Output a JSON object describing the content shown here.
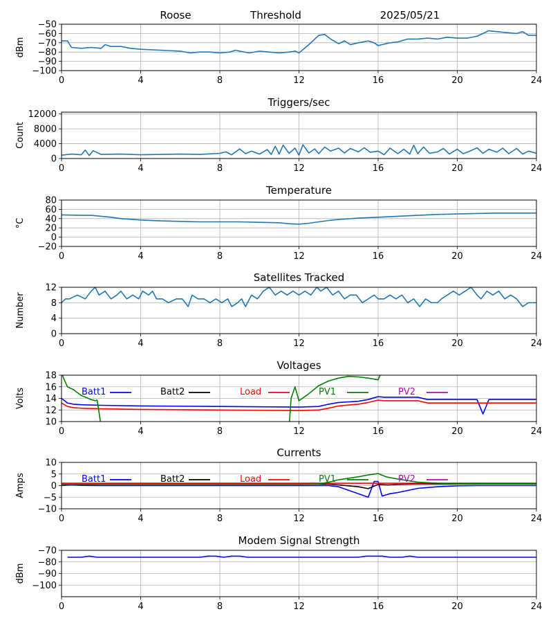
{
  "header": {
    "station": "Roose",
    "subtitle": "Threshold",
    "date": "2025/05/21"
  },
  "x_ticks": [
    0,
    4,
    8,
    12,
    16,
    20,
    24
  ],
  "colors": {
    "series": "#1f77b4",
    "grid": "#b0b0b0",
    "Batt1": "#0000ff",
    "Batt2": "#000000",
    "Load": "#ff0000",
    "PV1": "#008000",
    "PV2": "#c000c0"
  },
  "chart_data": [
    {
      "id": "threshold",
      "type": "line",
      "title": "",
      "ylabel": "dBm",
      "xlim": [
        0,
        24
      ],
      "ylim": [
        -100,
        -50
      ],
      "yticks": [
        -50,
        -60,
        -70,
        -80,
        -90,
        -100
      ],
      "grid": true,
      "series": [
        {
          "color": "#1f77b4",
          "x": [
            0,
            0.3,
            0.5,
            1,
            1.5,
            2,
            2.2,
            2.5,
            3,
            3.5,
            4,
            5,
            6,
            6.5,
            7,
            7.5,
            8,
            8.5,
            8.8,
            9,
            9.5,
            10,
            10.5,
            11,
            11.5,
            11.8,
            12,
            12.5,
            13,
            13.3,
            13.6,
            14,
            14.3,
            14.6,
            15,
            15.5,
            15.8,
            16,
            16.2,
            16.6,
            17,
            17.5,
            18,
            18.5,
            19,
            19.5,
            20,
            20.5,
            21,
            21.3,
            21.6,
            22,
            22.5,
            23,
            23.3,
            23.6,
            24
          ],
          "y": [
            -68,
            -68,
            -75,
            -76,
            -75,
            -76,
            -72,
            -74,
            -74,
            -76,
            -77,
            -78,
            -79,
            -81,
            -80,
            -80,
            -81,
            -80,
            -78,
            -79,
            -81,
            -79,
            -80,
            -81,
            -80,
            -79,
            -81,
            -72,
            -62,
            -61,
            -66,
            -71,
            -68,
            -72,
            -70,
            -68,
            -70,
            -73,
            -72,
            -70,
            -69,
            -66,
            -66,
            -65,
            -66,
            -64,
            -65,
            -65,
            -63,
            -60,
            -57,
            -58,
            -59,
            -60,
            -58,
            -62,
            -62
          ]
        }
      ]
    },
    {
      "id": "triggers",
      "type": "line",
      "title": "Triggers/sec",
      "ylabel": "Count",
      "xlim": [
        0,
        24
      ],
      "ylim": [
        0,
        12500
      ],
      "yticks": [
        0,
        4000,
        8000,
        12000
      ],
      "grid": true,
      "series": [
        {
          "color": "#1f77b4",
          "x": [
            0,
            0.5,
            1,
            1.2,
            1.4,
            1.6,
            2,
            3,
            4,
            5,
            6,
            7,
            8,
            8.3,
            8.6,
            9,
            9.3,
            9.6,
            10,
            10.4,
            10.6,
            10.8,
            11,
            11.2,
            11.5,
            11.8,
            12,
            12.2,
            12.5,
            12.8,
            13,
            13.3,
            13.6,
            14,
            14.3,
            14.6,
            15,
            15.3,
            15.6,
            16,
            16.3,
            16.6,
            17,
            17.3,
            17.6,
            17.8,
            18,
            18.3,
            18.6,
            19,
            19.3,
            19.6,
            20,
            20.3,
            20.6,
            21,
            21.3,
            21.6,
            22,
            22.3,
            22.6,
            23,
            23.3,
            23.6,
            24
          ],
          "y": [
            900,
            1200,
            1000,
            2300,
            800,
            2100,
            1100,
            1200,
            1000,
            1100,
            1200,
            1100,
            1400,
            1800,
            1000,
            2600,
            1300,
            2000,
            1200,
            2400,
            1100,
            3300,
            1200,
            3600,
            1400,
            2800,
            900,
            3700,
            1500,
            2600,
            1300,
            3100,
            2000,
            2800,
            1500,
            2700,
            1800,
            2900,
            1700,
            2000,
            1000,
            2800,
            1300,
            2500,
            1200,
            3600,
            1300,
            3100,
            1400,
            1800,
            2700,
            1200,
            2500,
            1300,
            1900,
            2900,
            1400,
            2500,
            1700,
            2800,
            1300,
            2700,
            1200,
            2000,
            1400
          ]
        }
      ]
    },
    {
      "id": "temperature",
      "type": "line",
      "title": "Temperature",
      "ylabel": "°C",
      "xlim": [
        0,
        24
      ],
      "ylim": [
        -20,
        80
      ],
      "yticks": [
        -20,
        0,
        20,
        40,
        60,
        80
      ],
      "grid": true,
      "series": [
        {
          "color": "#1f77b4",
          "x": [
            0,
            1,
            1.5,
            2,
            2.5,
            3,
            4,
            5,
            6,
            7,
            8,
            9,
            10,
            11,
            11.5,
            12,
            12.5,
            13,
            13.5,
            14,
            15,
            16,
            17,
            18,
            19,
            20,
            21,
            22,
            23,
            24
          ],
          "y": [
            48,
            47,
            47,
            45,
            43,
            40,
            37,
            35,
            34,
            33,
            33,
            33,
            32,
            31,
            29,
            28,
            30,
            33,
            36,
            38,
            41,
            43,
            45,
            47,
            49,
            50,
            51,
            52,
            52,
            52
          ]
        }
      ]
    },
    {
      "id": "satellites",
      "type": "line",
      "title": "Satellites Tracked",
      "ylabel": "Number",
      "xlim": [
        0,
        24
      ],
      "ylim": [
        0,
        12
      ],
      "yticks": [
        0,
        4,
        8,
        12
      ],
      "grid": true,
      "series": [
        {
          "color": "#1f77b4",
          "x": [
            0,
            0.2,
            0.4,
            0.8,
            1.2,
            1.5,
            1.7,
            1.9,
            2.2,
            2.5,
            2.8,
            3,
            3.3,
            3.6,
            3.9,
            4.1,
            4.4,
            4.6,
            4.8,
            5.1,
            5.4,
            5.8,
            6.1,
            6.4,
            6.6,
            6.9,
            7.2,
            7.5,
            7.8,
            8.1,
            8.4,
            8.6,
            8.9,
            9.1,
            9.3,
            9.6,
            9.9,
            10.2,
            10.5,
            10.8,
            11.1,
            11.4,
            11.7,
            12,
            12.3,
            12.6,
            12.9,
            13.1,
            13.4,
            13.7,
            14,
            14.3,
            14.6,
            14.9,
            15.2,
            15.5,
            15.8,
            16,
            16.3,
            16.6,
            16.9,
            17.2,
            17.5,
            17.8,
            18.1,
            18.4,
            18.7,
            19,
            19.2,
            19.5,
            19.8,
            20.1,
            20.4,
            20.7,
            21,
            21.2,
            21.5,
            21.8,
            22.1,
            22.4,
            22.7,
            23,
            23.3,
            23.6,
            24
          ],
          "y": [
            8,
            9,
            9,
            10,
            9,
            11,
            12,
            10,
            11,
            9,
            10,
            11,
            9,
            10,
            9,
            11,
            10,
            11,
            9,
            9,
            8,
            9,
            9,
            7,
            10,
            9,
            9,
            8,
            9,
            8,
            9,
            7,
            8,
            9,
            7,
            10,
            9,
            11,
            12,
            10,
            11,
            10,
            11,
            10,
            11,
            10,
            12,
            11,
            12,
            10,
            11,
            9,
            10,
            10,
            8,
            9,
            10,
            9,
            9,
            10,
            9,
            10,
            8,
            9,
            7,
            9,
            8,
            8,
            9,
            10,
            11,
            10,
            11,
            12,
            10,
            9,
            11,
            10,
            11,
            9,
            10,
            9,
            7,
            8,
            8
          ]
        }
      ]
    },
    {
      "id": "voltages",
      "type": "line",
      "title": "Voltages",
      "ylabel": "Volts",
      "xlim": [
        0,
        24
      ],
      "ylim": [
        10,
        18
      ],
      "yticks": [
        10,
        12,
        14,
        16,
        18
      ],
      "grid": true,
      "legend": [
        "Batt1",
        "Batt2",
        "Load",
        "PV1",
        "PV2"
      ],
      "series": [
        {
          "name": "Batt1",
          "color": "#0000ff",
          "x": [
            0,
            0.3,
            0.6,
            1,
            2,
            4,
            8,
            12,
            13,
            13.5,
            14,
            15,
            15.5,
            16,
            16.3,
            17,
            18,
            18.5,
            19,
            20,
            20.5,
            21,
            21.3,
            21.6,
            22,
            24
          ],
          "y": [
            14,
            13.2,
            13,
            12.9,
            12.8,
            12.7,
            12.6,
            12.5,
            12.6,
            13,
            13.3,
            13.5,
            13.8,
            14.3,
            14.2,
            14.2,
            14.2,
            13.8,
            13.8,
            13.8,
            13.8,
            13.8,
            11.3,
            13.8,
            13.8,
            13.8
          ]
        },
        {
          "name": "Load",
          "color": "#ff0000",
          "x": [
            0,
            0.3,
            0.6,
            1,
            2,
            4,
            8,
            12,
            13,
            13.5,
            14,
            15,
            15.5,
            16,
            16.3,
            17,
            18,
            18.5,
            19,
            20,
            24
          ],
          "y": [
            13.2,
            12.6,
            12.4,
            12.3,
            12.2,
            12.1,
            12,
            11.9,
            12,
            12.3,
            12.7,
            13,
            13.3,
            13.7,
            13.6,
            13.6,
            13.6,
            13.2,
            13.2,
            13.2,
            13.2
          ]
        },
        {
          "name": "PV1",
          "color": "#008000",
          "x": [
            0,
            0.1,
            0.3,
            0.6,
            1,
            1.5,
            1.7,
            1.8,
            1.9,
            2,
            11.5,
            11.6,
            11.8,
            12,
            12.5,
            13,
            13.5,
            14,
            14.5,
            15,
            15.5,
            16,
            16.1,
            16.3
          ],
          "y": [
            18.5,
            17.5,
            16,
            15.5,
            14.5,
            13.8,
            13.6,
            13.7,
            11.5,
            9,
            9,
            14,
            16,
            13.6,
            14.8,
            16.2,
            17,
            17.5,
            17.8,
            17.7,
            17.5,
            17.2,
            18,
            19
          ]
        }
      ]
    },
    {
      "id": "currents",
      "type": "line",
      "title": "Currents",
      "ylabel": "Amps",
      "xlim": [
        0,
        24
      ],
      "ylim": [
        -10,
        10
      ],
      "yticks": [
        -10,
        -5,
        0,
        5,
        10
      ],
      "grid": true,
      "legend": [
        "Batt1",
        "Batt2",
        "Load",
        "PV1",
        "PV2"
      ],
      "series": [
        {
          "name": "Batt1",
          "color": "#0000ff",
          "x": [
            0,
            0.5,
            1,
            2,
            4,
            8,
            12,
            13.5,
            14,
            14.5,
            15,
            15.5,
            15.8,
            16,
            16.2,
            16.6,
            17,
            18,
            19,
            20,
            21,
            24
          ],
          "y": [
            0,
            0.3,
            0.1,
            0,
            0,
            0,
            0,
            0,
            -0.5,
            -2,
            -3.5,
            -5,
            1.8,
            1.8,
            -4.5,
            -3.5,
            -3,
            -1.2,
            -0.5,
            -0.1,
            0,
            0
          ]
        },
        {
          "name": "Batt2",
          "color": "#000000",
          "x": [
            0,
            13.5,
            14,
            15,
            15.5,
            16,
            16.5,
            17,
            18,
            24
          ],
          "y": [
            0.6,
            0.6,
            0.3,
            -0.5,
            -1.3,
            0.5,
            0.3,
            0.5,
            0.7,
            0.7
          ]
        },
        {
          "name": "Load",
          "color": "#ff0000",
          "x": [
            0,
            1,
            4,
            8,
            12,
            13,
            14,
            15,
            16,
            17,
            18,
            24
          ],
          "y": [
            1,
            1,
            1,
            1,
            1,
            1,
            1,
            1,
            1,
            1,
            1,
            1
          ]
        },
        {
          "name": "PV1",
          "color": "#008000",
          "x": [
            0,
            12,
            13,
            13.5,
            14,
            15,
            15.5,
            16,
            16.4,
            17,
            18,
            19,
            20,
            24
          ],
          "y": [
            0.5,
            0.5,
            0.7,
            1.5,
            2.5,
            3.8,
            4.6,
            5.2,
            3.8,
            2.8,
            1.5,
            1,
            0.8,
            0.8
          ]
        }
      ]
    },
    {
      "id": "modem",
      "type": "line",
      "title": "Modem Signal Strength",
      "ylabel": "dBm",
      "xlim": [
        0,
        24
      ],
      "ylim": [
        -110,
        -70
      ],
      "yticks": [
        -70,
        -80,
        -90,
        -100
      ],
      "grid": true,
      "series": [
        {
          "color": "#0000ff",
          "x": [
            0.3,
            1,
            1.4,
            1.8,
            2.5,
            4,
            6,
            7,
            7.4,
            7.8,
            8.2,
            8.6,
            9,
            9.4,
            10,
            12,
            14,
            15,
            15.4,
            15.8,
            16.2,
            16.6,
            17.2,
            17.6,
            18,
            19,
            20,
            22,
            24
          ],
          "y": [
            -76,
            -76,
            -75,
            -76,
            -76,
            -76,
            -76,
            -76,
            -75,
            -75,
            -76,
            -75,
            -75,
            -76,
            -76,
            -76,
            -76,
            -76,
            -75,
            -75,
            -75,
            -76,
            -76,
            -75,
            -76,
            -76,
            -76,
            -76,
            -76
          ]
        }
      ]
    }
  ]
}
